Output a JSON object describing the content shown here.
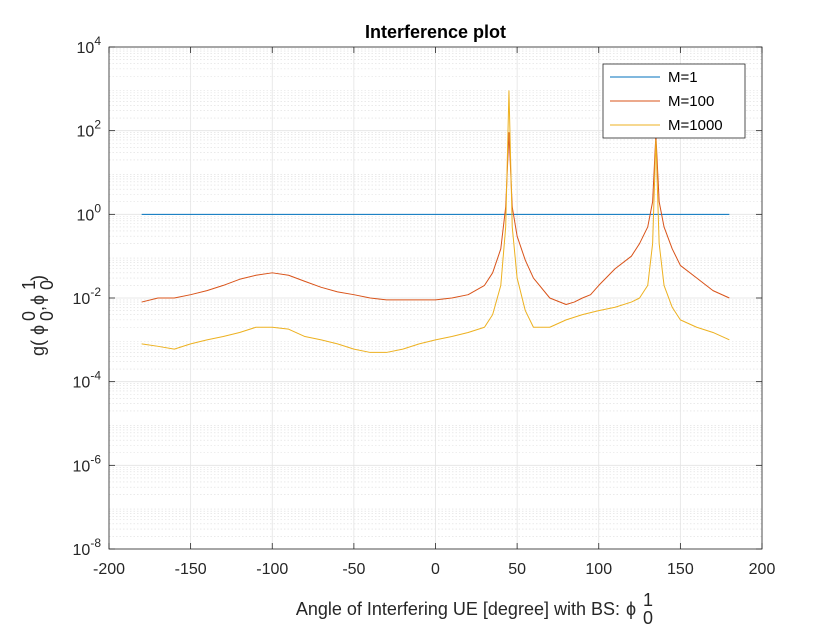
{
  "chart_data": {
    "type": "line",
    "title": "Interference plot",
    "xlabel": "Angle of Interfering UE [degree] with BS:",
    "xlabel_symbol": "ϕ",
    "xlabel_sup": "1",
    "xlabel_sub": "0",
    "ylabel": {
      "prefix": "g(",
      "sym1": "ϕ",
      "sup1": "0",
      "sub1": "0",
      "comma": ",",
      "sym2": "ϕ",
      "sup2": "1",
      "sub2": "0",
      "suffix": ")"
    },
    "xlim": [
      -200,
      200
    ],
    "ylim": [
      1e-08,
      10000.0
    ],
    "yscale": "log",
    "grid": true,
    "minor_grid": true,
    "legend_position": "top-right",
    "x_ticks": [
      -200,
      -150,
      -100,
      -50,
      0,
      50,
      100,
      150,
      200
    ],
    "x_tick_labels": [
      "-200",
      "-150",
      "-100",
      "-50",
      "0",
      "50",
      "100",
      "150",
      "200"
    ],
    "y_ticks": [
      {
        "value": 1e-08,
        "base": "10",
        "exp": "-8"
      },
      {
        "value": 1e-06,
        "base": "10",
        "exp": "-6"
      },
      {
        "value": 0.0001,
        "base": "10",
        "exp": "-4"
      },
      {
        "value": 0.01,
        "base": "10",
        "exp": "-2"
      },
      {
        "value": 1,
        "base": "10",
        "exp": "0"
      },
      {
        "value": 100,
        "base": "10",
        "exp": "2"
      },
      {
        "value": 10000,
        "base": "10",
        "exp": "4"
      }
    ],
    "series": [
      {
        "name": "M=1",
        "color": "#0072BD",
        "x": [
          -180,
          180
        ],
        "y": [
          1,
          1
        ]
      },
      {
        "name": "M=100",
        "color": "#D95319",
        "x": [
          -180,
          -170,
          -160,
          -150,
          -140,
          -130,
          -120,
          -110,
          -100,
          -90,
          -80,
          -70,
          -60,
          -50,
          -40,
          -30,
          -20,
          -10,
          0,
          10,
          20,
          30,
          35,
          40,
          43,
          45,
          47,
          50,
          55,
          60,
          70,
          80,
          85,
          90,
          95,
          100,
          110,
          120,
          125,
          130,
          133,
          135,
          137,
          140,
          145,
          150,
          160,
          170,
          180
        ],
        "y": [
          0.008,
          0.01,
          0.01,
          0.012,
          0.015,
          0.02,
          0.028,
          0.035,
          0.04,
          0.035,
          0.025,
          0.018,
          0.014,
          0.012,
          0.01,
          0.009,
          0.009,
          0.009,
          0.009,
          0.01,
          0.012,
          0.02,
          0.04,
          0.15,
          1.5,
          90,
          1.5,
          0.3,
          0.08,
          0.03,
          0.01,
          0.007,
          0.008,
          0.01,
          0.012,
          0.02,
          0.05,
          0.1,
          0.2,
          0.5,
          2,
          80,
          2,
          0.5,
          0.15,
          0.06,
          0.03,
          0.015,
          0.01
        ]
      },
      {
        "name": "M=1000",
        "color": "#EDB120",
        "x": [
          -180,
          -170,
          -160,
          -150,
          -140,
          -130,
          -120,
          -110,
          -100,
          -90,
          -80,
          -70,
          -60,
          -50,
          -40,
          -30,
          -20,
          -10,
          0,
          10,
          20,
          30,
          35,
          40,
          43,
          45,
          47,
          50,
          55,
          60,
          70,
          80,
          90,
          100,
          110,
          120,
          125,
          130,
          133,
          135,
          137,
          140,
          145,
          150,
          160,
          170,
          180
        ],
        "y": [
          0.0008,
          0.0007,
          0.0006,
          0.0008,
          0.001,
          0.0012,
          0.0015,
          0.002,
          0.002,
          0.0018,
          0.0012,
          0.001,
          0.0008,
          0.0006,
          0.0005,
          0.0005,
          0.0006,
          0.0008,
          0.001,
          0.0012,
          0.0015,
          0.002,
          0.004,
          0.02,
          0.5,
          900,
          0.5,
          0.03,
          0.005,
          0.002,
          0.002,
          0.003,
          0.004,
          0.005,
          0.006,
          0.008,
          0.01,
          0.02,
          0.2,
          60,
          0.2,
          0.02,
          0.006,
          0.003,
          0.002,
          0.0015,
          0.001
        ]
      }
    ]
  }
}
